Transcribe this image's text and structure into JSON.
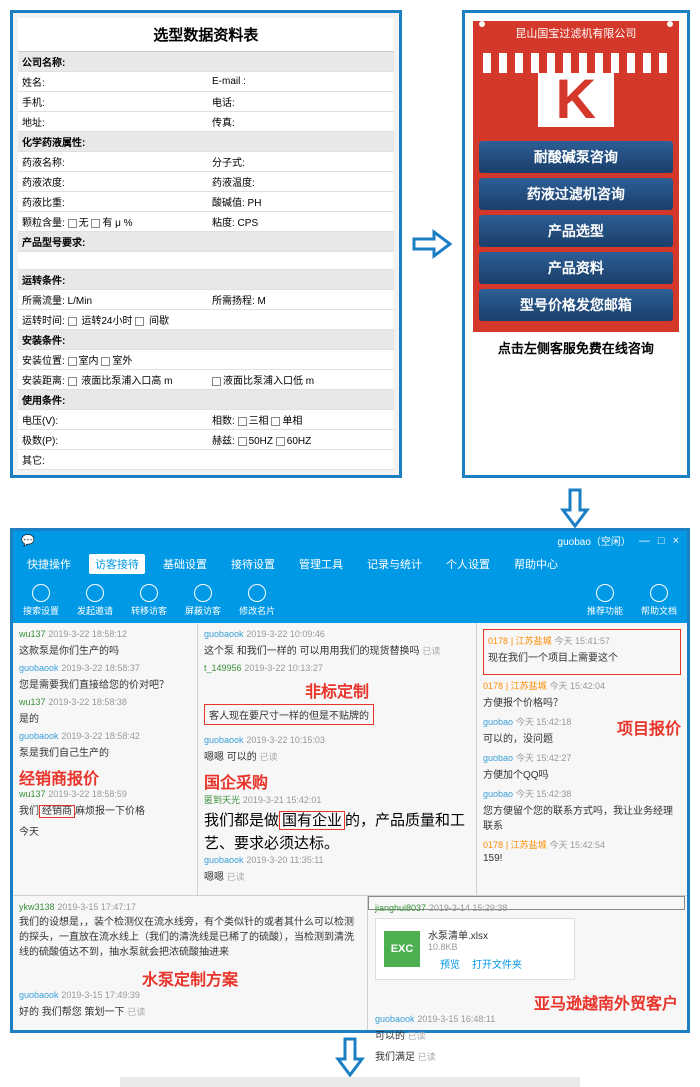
{
  "colors": {
    "frame": "#1b7fc4",
    "header_bg": "#0099e5",
    "red": "#e8342a",
    "brand_red": "#d4382a",
    "menu_btn": "#1a3f6a"
  },
  "form": {
    "title": "选型数据资料表",
    "rows": [
      {
        "section": "公司名称:"
      },
      {
        "l": "姓名:",
        "r": "E-mail :"
      },
      {
        "l": "手机:",
        "r": "电话:"
      },
      {
        "l": "地址:",
        "r": "传真:"
      },
      {
        "section": "化学药液属性:"
      },
      {
        "l": "药液名称:",
        "r": "分子式:"
      },
      {
        "l": "药液浓度:",
        "r": "药液温度:"
      },
      {
        "l": "药液比重:",
        "r": "酸碱值:   PH"
      },
      {
        "l": "颗粒含量:   □无    □有      μ    %",
        "r": "粘度:   CPS"
      },
      {
        "section": "产品型号要求:"
      },
      {
        "blank": true
      },
      {
        "section": "运转条件:"
      },
      {
        "l": "所需流量:            L/Min",
        "r": "所需扬程:          M"
      },
      {
        "l": "运转时间:   □ 运转24小时    □ 间歇",
        "r": ""
      },
      {
        "section": "安装条件:"
      },
      {
        "l": "安装位置:   □室内    □室外",
        "r": ""
      },
      {
        "l": "安装距离:   □ 液面比泵浦入口高    m",
        "r": "□液面比泵浦入口低   m"
      },
      {
        "section": "使用条件:"
      },
      {
        "l": "电压(V):",
        "r": "相数:   □三相   □单相"
      },
      {
        "l": "极数(P):",
        "r": "赫兹:   □50HZ   □60HZ"
      },
      {
        "l": "其它:",
        "r": ""
      }
    ]
  },
  "menu": {
    "header": "昆山国宝过滤机有限公司",
    "logo": "K",
    "buttons": [
      "耐酸碱泵咨询",
      "药液过滤机咨询",
      "产品选型",
      "产品资料",
      "型号价格发您邮箱"
    ],
    "caption": "点击左侧客服免费在线咨询"
  },
  "chat": {
    "user_badge": "guobao（空闲）",
    "tabs": [
      "快捷操作",
      "访客接待",
      "基础设置",
      "接待设置",
      "管理工具",
      "记录与统计",
      "个人设置",
      "帮助中心"
    ],
    "active_tab": 1,
    "icon_labels": [
      "搜索设置",
      "发起邀请",
      "转移访客",
      "屏蔽访客",
      "修改名片"
    ],
    "right_icons": [
      "推荐功能",
      "帮助文档"
    ],
    "col1": [
      {
        "u": "wu137",
        "t": "2019-3-22 18:58:12",
        "txt": "这款泵是你们生产的吗"
      },
      {
        "u": "guobaook",
        "cls": "staff",
        "t": "2019-3-22 18:58:37",
        "txt": "您是需要我们直接给您的价对吧？"
      },
      {
        "u": "wu137",
        "t": "2019-3-22 18:58:38",
        "txt": "是的"
      },
      {
        "u": "guobaook",
        "cls": "staff",
        "t": "2019-3-22 18:58:42",
        "txt": "泵是我们自己生产的"
      },
      {
        "label": "经销商报价"
      },
      {
        "u": "wu137",
        "t": "2019-3-22 18:58:59",
        "txt": "我们[经销商]麻烦报一下价格"
      },
      {
        "txt": "今天"
      }
    ],
    "col2": [
      {
        "u": "guobaook",
        "cls": "staff",
        "t": "2019-3-22 10:09:46",
        "txt": "这个泵 和我们一样的  可以用用我们的现货替换吗  已读"
      },
      {
        "u": "t_149956",
        "t": "2019-3-22 10:13:27"
      },
      {
        "label": "非标定制",
        "box": "客人现在要尺寸一样的但是不贴牌的"
      },
      {
        "u": "guobaook",
        "cls": "staff",
        "t": "2019-3-22 10:15:03",
        "txt": "嗯嗯 可以的  已读"
      },
      {
        "label": "国企采购"
      },
      {
        "u": "匿到天光",
        "t": "2019-3-21 15:42:01"
      },
      {
        "big": "我们都是做[国有企业]的，产品质量和工艺、要求必须达标。"
      },
      {
        "u": "guobaook",
        "cls": "staff",
        "t": "2019-3-20 11:35:11",
        "txt": "嗯嗯  已读"
      }
    ],
    "col3": [
      {
        "u": "0178",
        "cls": "orange",
        "loc": "| 江苏盐城",
        "t": "今天 15:41:57",
        "txt": "现在我们一个项目上需要这个",
        "boxed": true
      },
      {
        "u": "0178",
        "cls": "orange",
        "loc": "| 江苏盐城",
        "t": "今天 15:42:04",
        "txt": "方便报个价格吗？"
      },
      {
        "u": "guobao",
        "cls": "staff",
        "t": "今天 15:42:18",
        "label": "项目报价",
        "txt": "可以的，没问题"
      },
      {
        "u": "guobao",
        "cls": "staff",
        "t": "今天 15:42:27",
        "txt": "方便加个QQ吗"
      },
      {
        "u": "guobao",
        "cls": "staff",
        "t": "今天 15:42:38",
        "txt": "您方便留个您的联系方式吗，我让业务经理联系"
      },
      {
        "u": "0178",
        "cls": "orange",
        "loc": "| 江苏盐城",
        "t": "今天 15:42:54",
        "txt": "159!"
      }
    ],
    "row2a": {
      "u": "ykw3138",
      "t": "2019-3-15 17:47:17",
      "txt": "我们的设想是，，装个检测仪在流水线旁，有个类似针的或者其什么可以检测的探头，一直放在流水线上（我们的清洗线是已稀了的硫酸），当检测到清洗线的硫酸值达不到，抽水泵就会把浓硫酸抽进来",
      "label": "水泵定制方案",
      "u2": "guobaook",
      "t2": "2019-3-15 17:49:39",
      "txt2": "好的 我们帮您 策划一下  已读"
    },
    "row2b": {
      "u": "jianghui8037",
      "t": "2019-3-14 15:29:38",
      "file": {
        "icon": "EXC",
        "name": "水泵清单.xlsx",
        "size": "10.8KB",
        "a1": "预览",
        "a2": "打开文件夹"
      },
      "label": "亚马逊越南外贸客户",
      "u2": "guobaook",
      "t2": "2019-3-15 16:48:11",
      "txt2": "可以的  已读",
      "txt3": "我们满足  已读"
    }
  }
}
